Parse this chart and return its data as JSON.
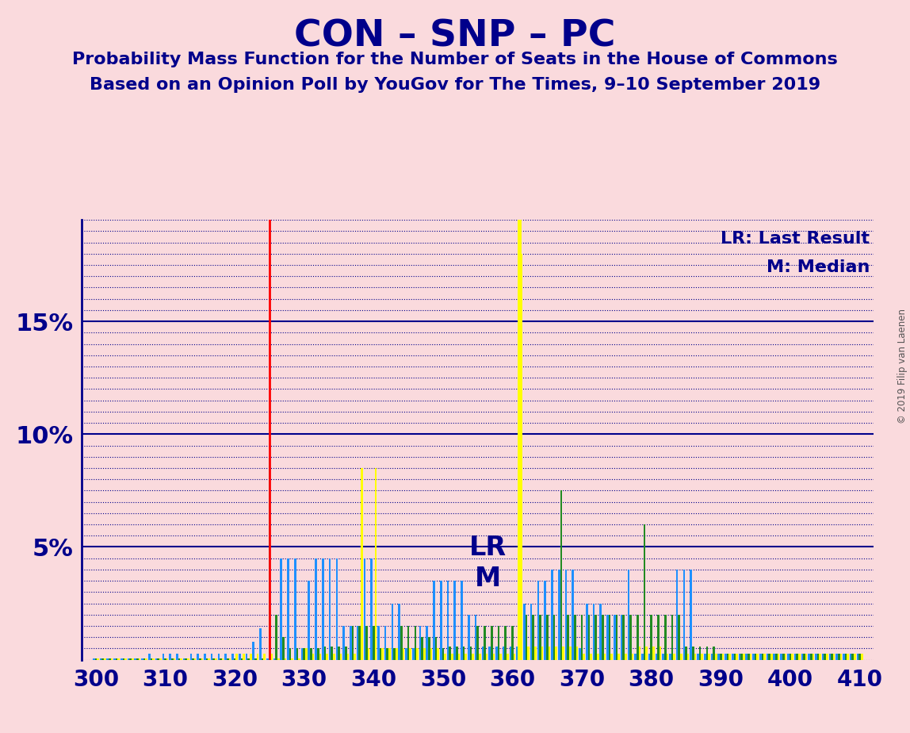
{
  "title": "CON – SNP – PC",
  "subtitle1": "Probability Mass Function for the Number of Seats in the House of Commons",
  "subtitle2": "Based on an Opinion Poll by YouGov for The Times, 9–10 September 2019",
  "copyright": "© 2019 Filip van Laenen",
  "legend_lr": "LR: Last Result",
  "legend_m": "M: Median",
  "lr_label": "LR",
  "m_label": "M",
  "lr_value": 325,
  "median_value": 361,
  "background_color": "#FADADD",
  "title_color": "#00008B",
  "bar_color_blue": "#1E90FF",
  "bar_color_green": "#228B22",
  "bar_color_yellow": "#FFFF00",
  "lr_line_color": "#FF0000",
  "median_line_color": "#FFFF00",
  "xlim": [
    298,
    412
  ],
  "ylim": [
    0,
    0.195
  ],
  "yticks": [
    0.05,
    0.1,
    0.15
  ],
  "ytick_labels": [
    "5%",
    "10%",
    "15%"
  ],
  "xticks": [
    300,
    310,
    320,
    330,
    340,
    350,
    360,
    370,
    380,
    390,
    400,
    410
  ],
  "data": {
    "300": {
      "blue": 0.0005,
      "green": 0.0005,
      "yellow": 0.0005
    },
    "301": {
      "blue": 0.0005,
      "green": 0.0005,
      "yellow": 0.0005
    },
    "302": {
      "blue": 0.0005,
      "green": 0.0005,
      "yellow": 0.0005
    },
    "303": {
      "blue": 0.0005,
      "green": 0.0005,
      "yellow": 0.0005
    },
    "304": {
      "blue": 0.0005,
      "green": 0.0005,
      "yellow": 0.0005
    },
    "305": {
      "blue": 0.0005,
      "green": 0.0005,
      "yellow": 0.0005
    },
    "306": {
      "blue": 0.0005,
      "green": 0.0005,
      "yellow": 0.0005
    },
    "307": {
      "blue": 0.0005,
      "green": 0.0005,
      "yellow": 0.0005
    },
    "308": {
      "blue": 0.0025,
      "green": 0.0005,
      "yellow": 0.0005
    },
    "309": {
      "blue": 0.0005,
      "green": 0.0005,
      "yellow": 0.0005
    },
    "310": {
      "blue": 0.0025,
      "green": 0.0005,
      "yellow": 0.0005
    },
    "311": {
      "blue": 0.0025,
      "green": 0.0005,
      "yellow": 0.0005
    },
    "312": {
      "blue": 0.0025,
      "green": 0.0005,
      "yellow": 0.0005
    },
    "313": {
      "blue": 0.0005,
      "green": 0.0005,
      "yellow": 0.0005
    },
    "314": {
      "blue": 0.0025,
      "green": 0.0005,
      "yellow": 0.0005
    },
    "315": {
      "blue": 0.0025,
      "green": 0.0005,
      "yellow": 0.0005
    },
    "316": {
      "blue": 0.0025,
      "green": 0.0005,
      "yellow": 0.0005
    },
    "317": {
      "blue": 0.0025,
      "green": 0.0005,
      "yellow": 0.0005
    },
    "318": {
      "blue": 0.0025,
      "green": 0.0005,
      "yellow": 0.0005
    },
    "319": {
      "blue": 0.0025,
      "green": 0.0005,
      "yellow": 0.0005
    },
    "320": {
      "blue": 0.0025,
      "green": 0.0005,
      "yellow": 0.0025
    },
    "321": {
      "blue": 0.0025,
      "green": 0.0005,
      "yellow": 0.0025
    },
    "322": {
      "blue": 0.0025,
      "green": 0.0005,
      "yellow": 0.0025
    },
    "323": {
      "blue": 0.008,
      "green": 0.0005,
      "yellow": 0.0025
    },
    "324": {
      "blue": 0.014,
      "green": 0.0005,
      "yellow": 0.0025
    },
    "325": {
      "blue": 0.0005,
      "green": 0.09,
      "yellow": 0.0025
    },
    "326": {
      "blue": 0.0005,
      "green": 0.02,
      "yellow": 0.0005
    },
    "327": {
      "blue": 0.045,
      "green": 0.01,
      "yellow": 0.0005
    },
    "328": {
      "blue": 0.045,
      "green": 0.005,
      "yellow": 0.0005
    },
    "329": {
      "blue": 0.045,
      "green": 0.005,
      "yellow": 0.0005
    },
    "330": {
      "blue": 0.005,
      "green": 0.005,
      "yellow": 0.005
    },
    "331": {
      "blue": 0.035,
      "green": 0.005,
      "yellow": 0.0025
    },
    "332": {
      "blue": 0.045,
      "green": 0.005,
      "yellow": 0.0025
    },
    "333": {
      "blue": 0.045,
      "green": 0.006,
      "yellow": 0.0025
    },
    "334": {
      "blue": 0.045,
      "green": 0.006,
      "yellow": 0.0025
    },
    "335": {
      "blue": 0.045,
      "green": 0.006,
      "yellow": 0.0025
    },
    "336": {
      "blue": 0.015,
      "green": 0.006,
      "yellow": 0.0025
    },
    "337": {
      "blue": 0.015,
      "green": 0.015,
      "yellow": 0.0025
    },
    "338": {
      "blue": 0.015,
      "green": 0.015,
      "yellow": 0.085
    },
    "339": {
      "blue": 0.045,
      "green": 0.015,
      "yellow": 0.005
    },
    "340": {
      "blue": 0.045,
      "green": 0.015,
      "yellow": 0.085
    },
    "341": {
      "blue": 0.015,
      "green": 0.005,
      "yellow": 0.005
    },
    "342": {
      "blue": 0.015,
      "green": 0.005,
      "yellow": 0.005
    },
    "343": {
      "blue": 0.025,
      "green": 0.005,
      "yellow": 0.005
    },
    "344": {
      "blue": 0.025,
      "green": 0.015,
      "yellow": 0.005
    },
    "345": {
      "blue": 0.005,
      "green": 0.015,
      "yellow": 0.005
    },
    "346": {
      "blue": 0.005,
      "green": 0.015,
      "yellow": 0.005
    },
    "347": {
      "blue": 0.015,
      "green": 0.01,
      "yellow": 0.005
    },
    "348": {
      "blue": 0.015,
      "green": 0.01,
      "yellow": 0.005
    },
    "349": {
      "blue": 0.035,
      "green": 0.01,
      "yellow": 0.005
    },
    "350": {
      "blue": 0.035,
      "green": 0.005,
      "yellow": 0.0025
    },
    "351": {
      "blue": 0.035,
      "green": 0.006,
      "yellow": 0.0025
    },
    "352": {
      "blue": 0.035,
      "green": 0.006,
      "yellow": 0.0025
    },
    "353": {
      "blue": 0.035,
      "green": 0.006,
      "yellow": 0.0025
    },
    "354": {
      "blue": 0.02,
      "green": 0.006,
      "yellow": 0.0025
    },
    "355": {
      "blue": 0.02,
      "green": 0.015,
      "yellow": 0.0025
    },
    "356": {
      "blue": 0.006,
      "green": 0.015,
      "yellow": 0.0025
    },
    "357": {
      "blue": 0.006,
      "green": 0.015,
      "yellow": 0.0025
    },
    "358": {
      "blue": 0.006,
      "green": 0.015,
      "yellow": 0.0025
    },
    "359": {
      "blue": 0.006,
      "green": 0.015,
      "yellow": 0.0025
    },
    "360": {
      "blue": 0.006,
      "green": 0.015,
      "yellow": 0.0025
    },
    "361": {
      "blue": 0.006,
      "green": 0.02,
      "yellow": 0.18
    },
    "362": {
      "blue": 0.025,
      "green": 0.02,
      "yellow": 0.006
    },
    "363": {
      "blue": 0.025,
      "green": 0.02,
      "yellow": 0.006
    },
    "364": {
      "blue": 0.035,
      "green": 0.02,
      "yellow": 0.006
    },
    "365": {
      "blue": 0.035,
      "green": 0.02,
      "yellow": 0.006
    },
    "366": {
      "blue": 0.04,
      "green": 0.02,
      "yellow": 0.006
    },
    "367": {
      "blue": 0.04,
      "green": 0.075,
      "yellow": 0.006
    },
    "368": {
      "blue": 0.04,
      "green": 0.02,
      "yellow": 0.006
    },
    "369": {
      "blue": 0.04,
      "green": 0.02,
      "yellow": 0.006
    },
    "370": {
      "blue": 0.005,
      "green": 0.02,
      "yellow": 0.0025
    },
    "371": {
      "blue": 0.025,
      "green": 0.02,
      "yellow": 0.0025
    },
    "372": {
      "blue": 0.025,
      "green": 0.02,
      "yellow": 0.0025
    },
    "373": {
      "blue": 0.025,
      "green": 0.02,
      "yellow": 0.0025
    },
    "374": {
      "blue": 0.02,
      "green": 0.02,
      "yellow": 0.0025
    },
    "375": {
      "blue": 0.02,
      "green": 0.02,
      "yellow": 0.0025
    },
    "376": {
      "blue": 0.02,
      "green": 0.02,
      "yellow": 0.0025
    },
    "377": {
      "blue": 0.04,
      "green": 0.02,
      "yellow": 0.0025
    },
    "378": {
      "blue": 0.0025,
      "green": 0.02,
      "yellow": 0.006
    },
    "379": {
      "blue": 0.0025,
      "green": 0.06,
      "yellow": 0.006
    },
    "380": {
      "blue": 0.0025,
      "green": 0.02,
      "yellow": 0.006
    },
    "381": {
      "blue": 0.0025,
      "green": 0.02,
      "yellow": 0.006
    },
    "382": {
      "blue": 0.0025,
      "green": 0.02,
      "yellow": 0.0025
    },
    "383": {
      "blue": 0.0025,
      "green": 0.02,
      "yellow": 0.0025
    },
    "384": {
      "blue": 0.04,
      "green": 0.02,
      "yellow": 0.0025
    },
    "385": {
      "blue": 0.04,
      "green": 0.006,
      "yellow": 0.0025
    },
    "386": {
      "blue": 0.04,
      "green": 0.006,
      "yellow": 0.0025
    },
    "387": {
      "blue": 0.0025,
      "green": 0.006,
      "yellow": 0.0025
    },
    "388": {
      "blue": 0.0025,
      "green": 0.006,
      "yellow": 0.0025
    },
    "389": {
      "blue": 0.0025,
      "green": 0.006,
      "yellow": 0.0025
    },
    "390": {
      "blue": 0.0025,
      "green": 0.0025,
      "yellow": 0.0025
    },
    "391": {
      "blue": 0.0025,
      "green": 0.0025,
      "yellow": 0.0025
    },
    "392": {
      "blue": 0.0025,
      "green": 0.0025,
      "yellow": 0.0025
    },
    "393": {
      "blue": 0.0025,
      "green": 0.0025,
      "yellow": 0.0025
    },
    "394": {
      "blue": 0.0025,
      "green": 0.0025,
      "yellow": 0.0025
    },
    "395": {
      "blue": 0.0025,
      "green": 0.0025,
      "yellow": 0.0025
    },
    "396": {
      "blue": 0.0025,
      "green": 0.0025,
      "yellow": 0.0025
    },
    "397": {
      "blue": 0.0025,
      "green": 0.0025,
      "yellow": 0.0025
    },
    "398": {
      "blue": 0.0025,
      "green": 0.0025,
      "yellow": 0.0025
    },
    "399": {
      "blue": 0.0025,
      "green": 0.0025,
      "yellow": 0.0025
    },
    "400": {
      "blue": 0.0025,
      "green": 0.0025,
      "yellow": 0.0025
    },
    "401": {
      "blue": 0.0025,
      "green": 0.0025,
      "yellow": 0.0025
    },
    "402": {
      "blue": 0.0025,
      "green": 0.0025,
      "yellow": 0.0025
    },
    "403": {
      "blue": 0.0025,
      "green": 0.0025,
      "yellow": 0.0025
    },
    "404": {
      "blue": 0.0025,
      "green": 0.0025,
      "yellow": 0.0025
    },
    "405": {
      "blue": 0.0025,
      "green": 0.0025,
      "yellow": 0.0025
    },
    "406": {
      "blue": 0.0025,
      "green": 0.0025,
      "yellow": 0.0025
    },
    "407": {
      "blue": 0.0025,
      "green": 0.0025,
      "yellow": 0.0025
    },
    "408": {
      "blue": 0.0025,
      "green": 0.0025,
      "yellow": 0.0025
    },
    "409": {
      "blue": 0.0025,
      "green": 0.0025,
      "yellow": 0.0025
    },
    "410": {
      "blue": 0.0025,
      "green": 0.0025,
      "yellow": 0.0025
    }
  }
}
